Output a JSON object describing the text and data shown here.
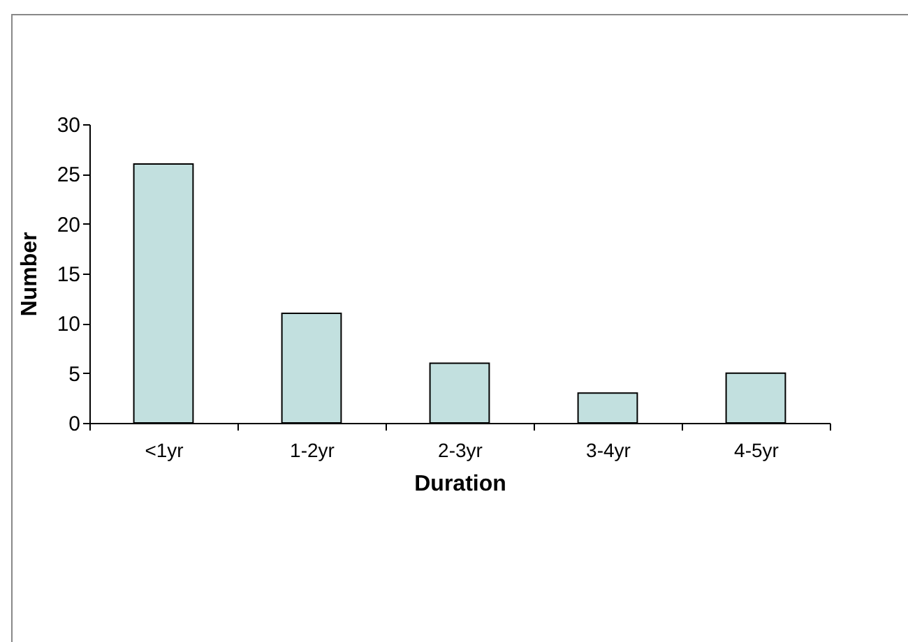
{
  "chart_data": {
    "type": "bar",
    "xlabel": "Duration",
    "ylabel": "Number",
    "categories": [
      "<1yr",
      "1-2yr",
      "2-3yr",
      "3-4yr",
      "4-5yr"
    ],
    "values": [
      26,
      11,
      6,
      3,
      5
    ],
    "color": "#c2e0df",
    "ylim": [
      0,
      30
    ],
    "yticks": [
      0,
      5,
      10,
      15,
      20,
      25,
      30
    ],
    "grid": false,
    "legend": false
  }
}
